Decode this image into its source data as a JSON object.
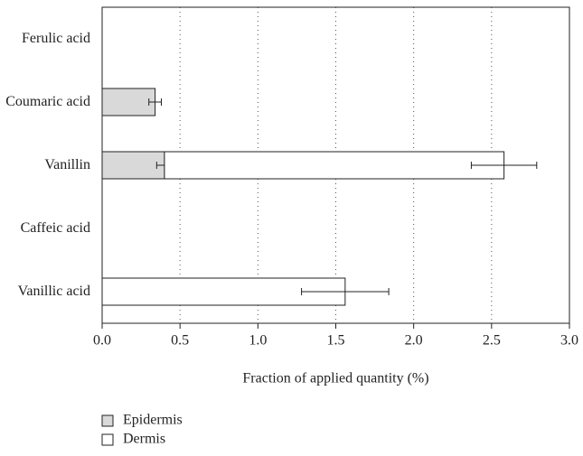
{
  "chart_data": {
    "type": "hbar-stacked",
    "categories": [
      "Ferulic acid",
      "Coumaric acid",
      "Vanillin",
      "Caffeic acid",
      "Vanillic acid"
    ],
    "series": [
      {
        "name": "Epidermis",
        "color": "#d9d9d9",
        "values": [
          0,
          0.34,
          0.4,
          0,
          0
        ],
        "errors": [
          null,
          0.04,
          0.05,
          null,
          null
        ]
      },
      {
        "name": "Dermis",
        "color": "#ffffff",
        "values": [
          0,
          0,
          2.18,
          0,
          1.56
        ],
        "errors": [
          null,
          null,
          0.21,
          null,
          0.28
        ]
      }
    ],
    "xlabel": "Fraction of applied quantity (%)",
    "xlim": [
      0,
      3
    ],
    "xticks": [
      {
        "value": 0,
        "label": "0.0"
      },
      0.5,
      {
        "value": 1,
        "label": "1.0"
      },
      1.5,
      {
        "value": 2,
        "label": "2.0"
      },
      2.5,
      {
        "value": 3,
        "label": "3.0"
      }
    ],
    "grid": true,
    "legend": "bottom-left"
  }
}
